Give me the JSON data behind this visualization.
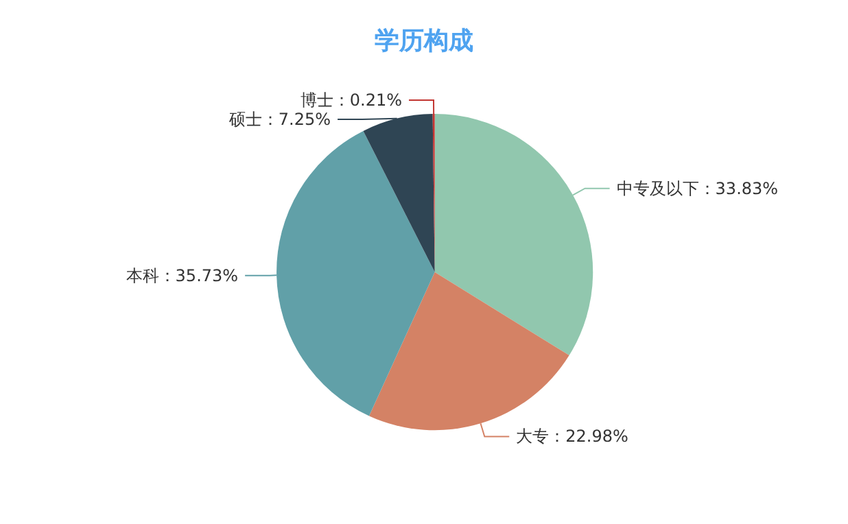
{
  "chart_data": {
    "type": "pie",
    "title": "学历构成",
    "categories": [
      "中专及以下",
      "大专",
      "本科",
      "硕士",
      "博士"
    ],
    "values": [
      33.83,
      22.98,
      35.73,
      7.25,
      0.21
    ],
    "value_labels": [
      "33.83%",
      "22.98%",
      "35.73%",
      "7.25%",
      "0.21%"
    ],
    "colors": [
      "#91c7ae",
      "#d48265",
      "#61a0a8",
      "#2f4554",
      "#c23531"
    ],
    "legend": false
  }
}
